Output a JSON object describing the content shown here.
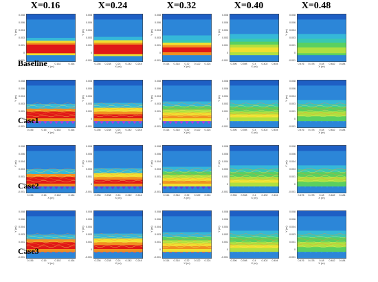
{
  "columns": [
    "X=0.16",
    "X=0.24",
    "X=0.32",
    "X=0.40",
    "X=0.48"
  ],
  "rows": [
    "Baseline",
    "Case1",
    "Case2",
    "Case3"
  ],
  "x_axis_label": "X (m)",
  "y_axis_label": "Y (m)",
  "y_ticks": [
    "0.008",
    "0.006",
    "0.004",
    "0.003",
    "0.001",
    "0",
    "-0.001"
  ],
  "x_ticks": [
    [
      "0.156",
      "0.16",
      "0.162",
      "0.164"
    ],
    [
      "0.236",
      "0.238",
      "0.24",
      "0.242",
      "0.244"
    ],
    [
      "0.314",
      "0.318",
      "0.32",
      "0.322",
      "0.324"
    ],
    [
      "0.396",
      "0.398",
      "0.4",
      "0.402",
      "0.404"
    ],
    [
      "0.476",
      "0.478",
      "0.48",
      "0.482",
      "0.484"
    ]
  ],
  "legend_colors": [
    "#0000b0",
    "#1060e0",
    "#2aa0e8",
    "#30c8c0",
    "#50d070",
    "#a0e040",
    "#e8e830",
    "#f0b020",
    "#f06010",
    "#d81010"
  ],
  "field_colors": {
    "deep_blue": "#1e5fc4",
    "blue": "#2c86d8",
    "cyan": "#35b8d8",
    "teal": "#3ac8b0",
    "green": "#5ad060",
    "lime": "#b0e040",
    "yellow": "#f0e030",
    "orange": "#f09020",
    "red": "#e01818"
  },
  "wall_marker_colors": {
    "Case1": "#b03ce0",
    "Case2": "#5a40e0",
    "Case3": "#ff4848"
  }
}
